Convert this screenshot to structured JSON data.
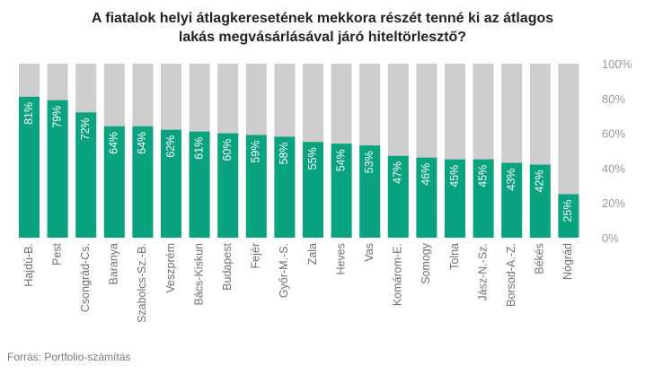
{
  "chart_data": {
    "type": "bar",
    "title_lines": [
      "A fiatalok helyi átlagkeresetének mekkora részét tenné ki az átlagos",
      "lakás megvásárlásával járó hiteltörlesztő?"
    ],
    "categories": [
      "Hajdú-B.",
      "Pest",
      "Csongrád-Cs.",
      "Baranya",
      "Szabolcs-Sz.-B.",
      "Veszprém",
      "Bács-Kiskun",
      "Budapest",
      "Fejér",
      "Győr-M.-S.",
      "Zala",
      "Heves",
      "Vas",
      "Komárom-E.",
      "Somogy",
      "Tolna",
      "Jász-N.-Sz.",
      "Borsod-A.-Z.",
      "Békés",
      "Nógrád"
    ],
    "values": [
      81,
      79,
      72,
      64,
      64,
      62,
      61,
      60,
      59,
      58,
      55,
      54,
      53,
      47,
      46,
      45,
      45,
      43,
      42,
      25
    ],
    "value_labels": [
      "81%",
      "79%",
      "72%",
      "64%",
      "64%",
      "62%",
      "61%",
      "60%",
      "59%",
      "58%",
      "55%",
      "54%",
      "53%",
      "47%",
      "46%",
      "45%",
      "45%",
      "43%",
      "42%",
      "25%"
    ],
    "ylim": [
      0,
      100
    ],
    "y_ticks": [
      0,
      20,
      40,
      60,
      80,
      100
    ],
    "y_tick_labels": [
      "0%",
      "20%",
      "40%",
      "60%",
      "80%",
      "100%"
    ],
    "y_axis_side": "right",
    "background_bar_value": 100,
    "legend": "none",
    "grid": false,
    "colors": {
      "bar": "#0aa37f",
      "background_bar": "#cdcdcd"
    }
  },
  "source": "Forrás: Portfolio-számítás"
}
